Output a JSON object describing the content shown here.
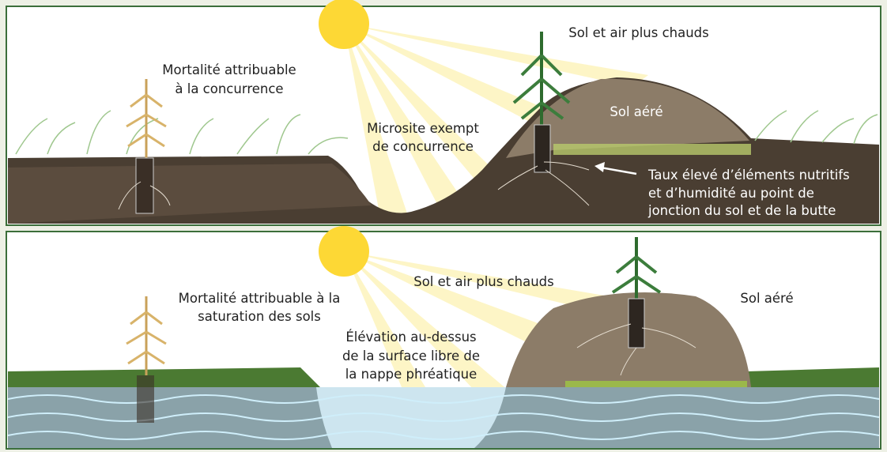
{
  "panels": [
    {
      "labels": [
        {
          "lines": [
            "Mortalité attribuable",
            "à la concurrence"
          ]
        },
        {
          "lines": [
            "Microsite exempt",
            "de concurrence"
          ]
        },
        {
          "lines": [
            "Sol et air plus chauds"
          ]
        },
        {
          "lines": [
            "Sol aéré"
          ]
        },
        {
          "lines": [
            "Taux élevé d’éléments nutritifs",
            "et d’humidité au point de",
            "jonction du sol et de la butte"
          ]
        }
      ]
    },
    {
      "labels": [
        {
          "lines": [
            "Mortalité attribuable à la",
            "saturation des sols"
          ]
        },
        {
          "lines": [
            "Sol et air plus chauds"
          ]
        },
        {
          "lines": [
            "Sol aéré"
          ]
        },
        {
          "lines": [
            "Élévation au-dessus",
            "de la surface libre de",
            "la nappe phréatique"
          ]
        }
      ]
    }
  ]
}
